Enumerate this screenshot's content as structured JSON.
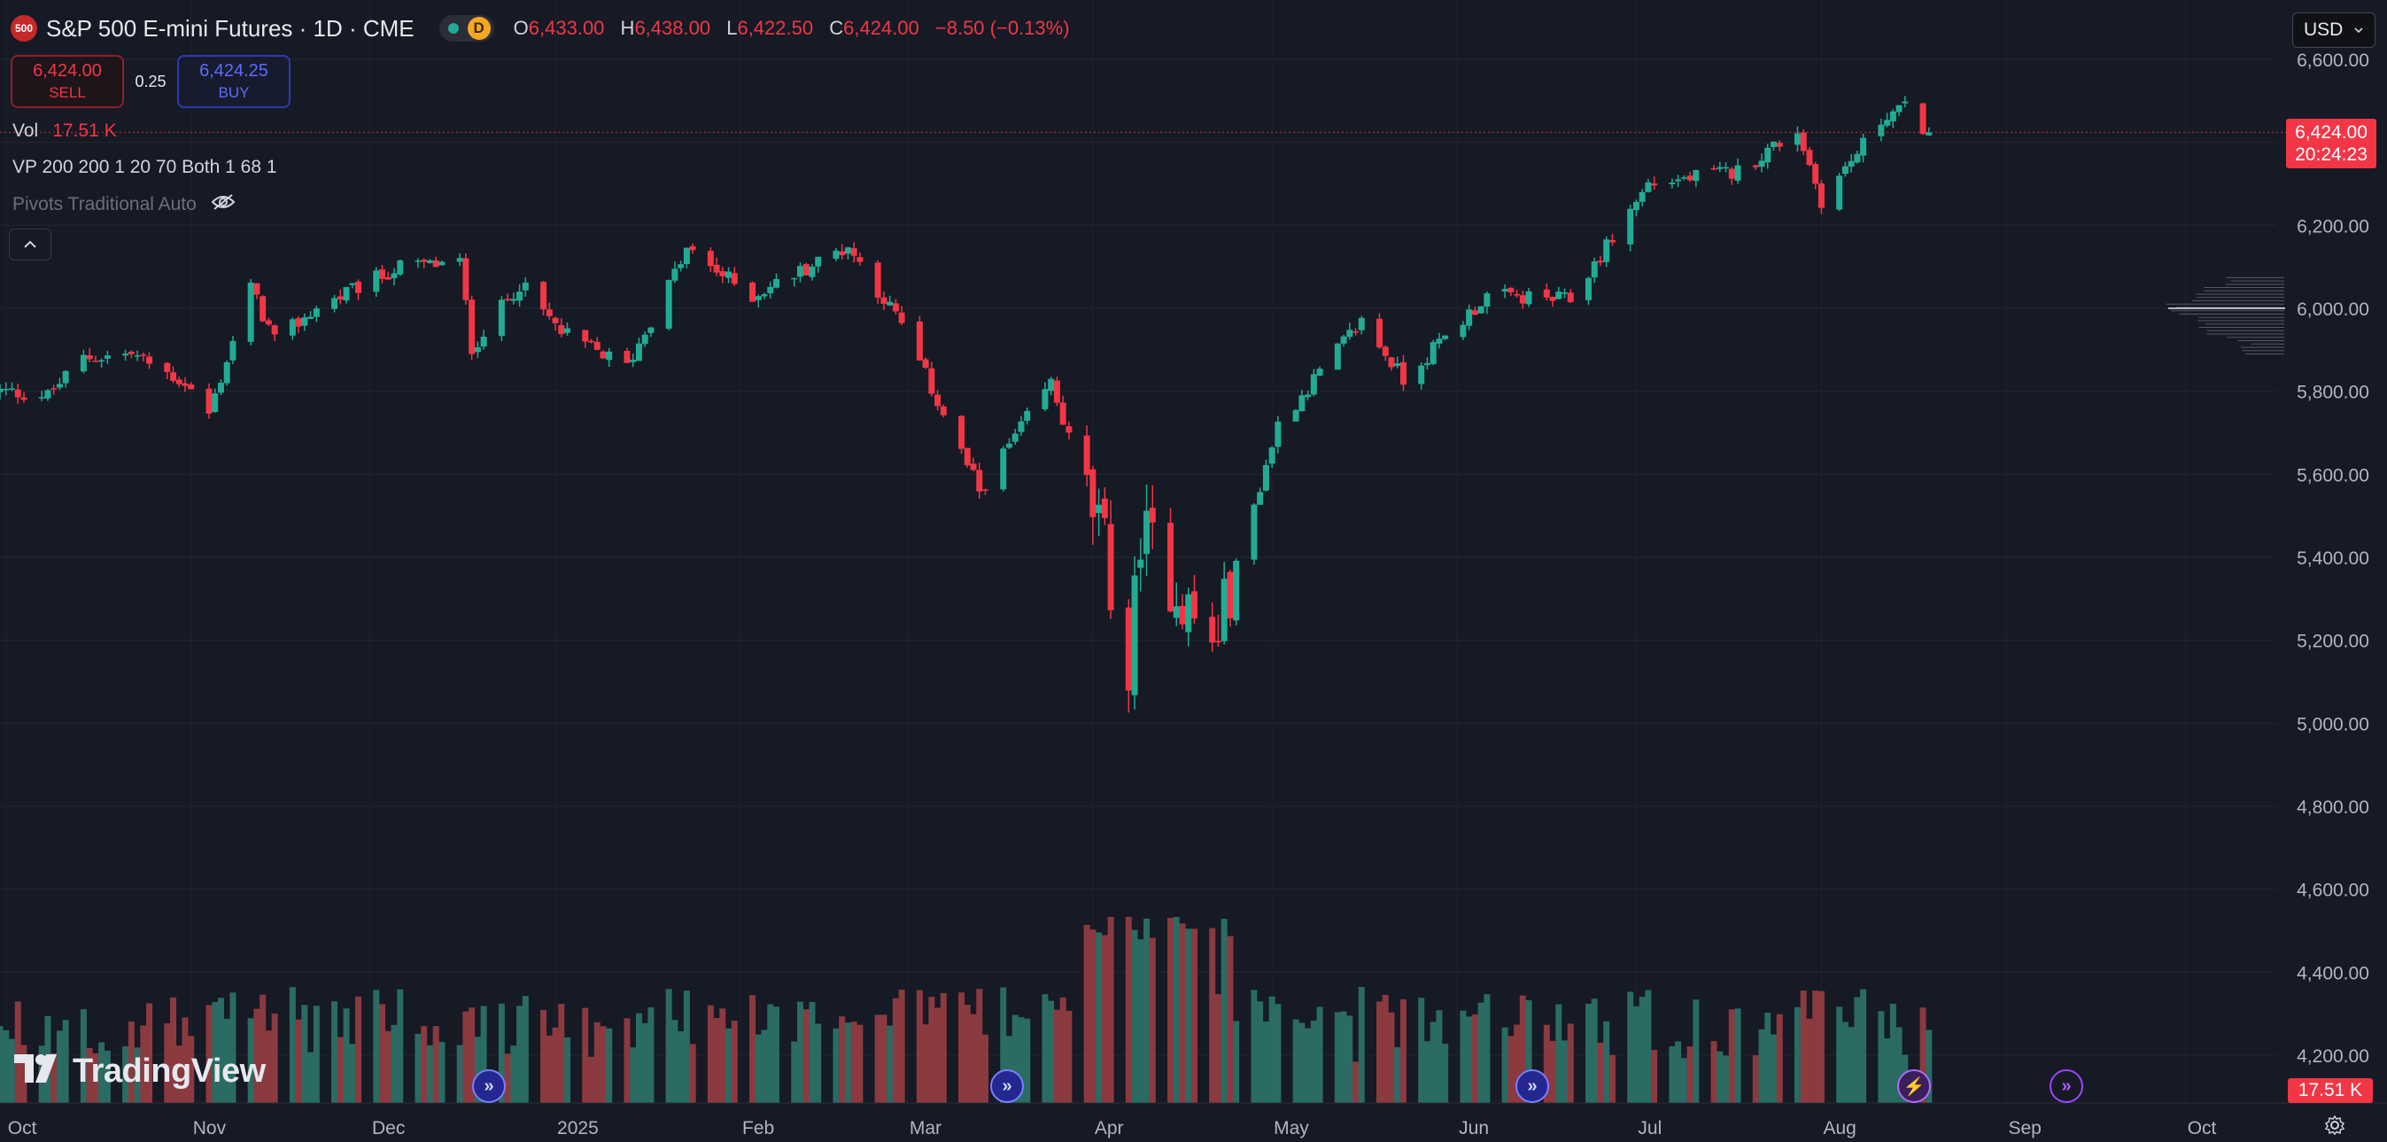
{
  "header": {
    "symbol_badge": "500",
    "title": "S&P 500 E-mini Futures · 1D · CME",
    "interval_badge": "D",
    "ohlc": {
      "o_key": "O",
      "o_val": "6,433.00",
      "h_key": "H",
      "h_val": "6,438.00",
      "l_key": "L",
      "l_val": "6,422.50",
      "c_key": "C",
      "c_val": "6,424.00",
      "change": "−8.50 (−0.13%)"
    }
  },
  "trade": {
    "sell_price": "6,424.00",
    "sell_label": "SELL",
    "spread": "0.25",
    "buy_price": "6,424.25",
    "buy_label": "BUY"
  },
  "indicators": {
    "vol_label": "Vol",
    "vol_value": "17.51 K",
    "vp_label": "VP 200 200 1 20 70 Both 1 68 1",
    "pivots_label": "Pivots Traditional Auto"
  },
  "currency": "USD",
  "price_tag": {
    "price": "6,424.00",
    "countdown": "20:24:23"
  },
  "volume_tag": "17.51 K",
  "logo_text": "TradingView",
  "colors": {
    "up": "#22ab94",
    "down": "#f23645",
    "up_volume": "#2a6b63",
    "down_volume": "#8b3a3f",
    "background": "#161a25"
  },
  "chart_data": {
    "type": "candlestick",
    "title": "S&P 500 E-mini Futures · 1D · CME",
    "x_ticks": [
      "Oct",
      "Nov",
      "Dec",
      "2025",
      "Feb",
      "Mar",
      "Apr",
      "May",
      "Jun",
      "Jul",
      "Aug",
      "Sep",
      "Oct"
    ],
    "y_ticks": [
      "6,600.00",
      "6,400.00",
      "6,200.00",
      "6,000.00",
      "5,800.00",
      "5,600.00",
      "5,400.00",
      "5,200.00",
      "5,000.00",
      "4,800.00",
      "4,600.00",
      "4,400.00",
      "4,200.00"
    ],
    "ylim": [
      4150,
      6660
    ],
    "x_range": [
      "2024-09-30",
      "2025-10-31"
    ],
    "current_price": 6424.0,
    "last_volume": "17.51 K",
    "volume_profile_poc": 6000,
    "anchors": [
      {
        "date": "2024-09-30",
        "close": 5800
      },
      {
        "date": "2024-10-08",
        "close": 5790
      },
      {
        "date": "2024-10-14",
        "close": 5880
      },
      {
        "date": "2024-10-22",
        "close": 5890
      },
      {
        "date": "2024-10-31",
        "close": 5820
      },
      {
        "date": "2024-11-04",
        "close": 5745
      },
      {
        "date": "2024-11-11",
        "close": 6050
      },
      {
        "date": "2024-11-15",
        "close": 5920
      },
      {
        "date": "2024-11-22",
        "close": 6000
      },
      {
        "date": "2024-12-06",
        "close": 6100
      },
      {
        "date": "2024-12-16",
        "close": 6110
      },
      {
        "date": "2024-12-18",
        "close": 5905
      },
      {
        "date": "2024-12-26",
        "close": 6060
      },
      {
        "date": "2025-01-02",
        "close": 5940
      },
      {
        "date": "2025-01-13",
        "close": 5860
      },
      {
        "date": "2025-01-23",
        "close": 6140
      },
      {
        "date": "2025-02-03",
        "close": 6030
      },
      {
        "date": "2025-02-19",
        "close": 6150
      },
      {
        "date": "2025-02-28",
        "close": 5960
      },
      {
        "date": "2025-03-13",
        "close": 5560
      },
      {
        "date": "2025-03-25",
        "close": 5820
      },
      {
        "date": "2025-04-03",
        "close": 5420
      },
      {
        "date": "2025-04-07",
        "close": 5100
      },
      {
        "date": "2025-04-09",
        "close": 5470
      },
      {
        "date": "2025-04-21",
        "close": 5180
      },
      {
        "date": "2025-05-02",
        "close": 5720
      },
      {
        "date": "2025-05-16",
        "close": 5970
      },
      {
        "date": "2025-05-23",
        "close": 5830
      },
      {
        "date": "2025-06-06",
        "close": 6030
      },
      {
        "date": "2025-06-20",
        "close": 6020
      },
      {
        "date": "2025-07-03",
        "close": 6300
      },
      {
        "date": "2025-07-18",
        "close": 6330
      },
      {
        "date": "2025-07-28",
        "close": 6430
      },
      {
        "date": "2025-08-01",
        "close": 6260
      },
      {
        "date": "2025-08-12",
        "close": 6470
      },
      {
        "date": "2025-08-15",
        "close": 6480
      },
      {
        "date": "2025-08-19",
        "close": 6424
      }
    ]
  }
}
